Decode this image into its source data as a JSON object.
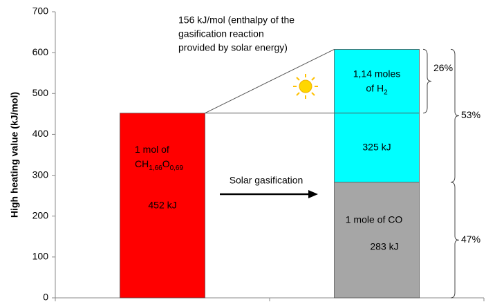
{
  "chart_data": {
    "type": "bar",
    "stacked": true,
    "ylabel": "High heating value (kJ/mol)",
    "ylim": [
      0,
      700
    ],
    "yticks": [
      0,
      100,
      200,
      300,
      400,
      500,
      600,
      700
    ],
    "categories": [
      null,
      null
    ],
    "series": [
      {
        "color": "#ff0000",
        "values": [
          452,
          null
        ],
        "value_labels": [
          "452 kJ",
          null
        ],
        "label_lines": [
          [
            "1 mol of"
          ],
          [
            "CH",
            "1,66",
            "O",
            "0,69"
          ]
        ]
      },
      {
        "color": "#a6a6a6",
        "values": [
          null,
          283
        ],
        "value_labels": [
          null,
          "283 kJ"
        ],
        "label_lines": [
          [
            "1 mole of CO"
          ]
        ]
      },
      {
        "color": "#00ffff",
        "values": [
          null,
          325
        ],
        "value_labels": [
          null,
          "325 kJ"
        ],
        "label_lines": [
          [
            "1,14 moles"
          ],
          [
            "of H",
            "2"
          ]
        ]
      }
    ],
    "annotation_lines": [
      "156 kJ/mol  (enthalpy of the",
      "gasification reaction",
      "provided by solar energy)"
    ],
    "arrow_label": "Solar gasification",
    "percentages": {
      "values": [
        26,
        53,
        47
      ],
      "value_labels": [
        "26%",
        "53%",
        "47%"
      ]
    }
  }
}
